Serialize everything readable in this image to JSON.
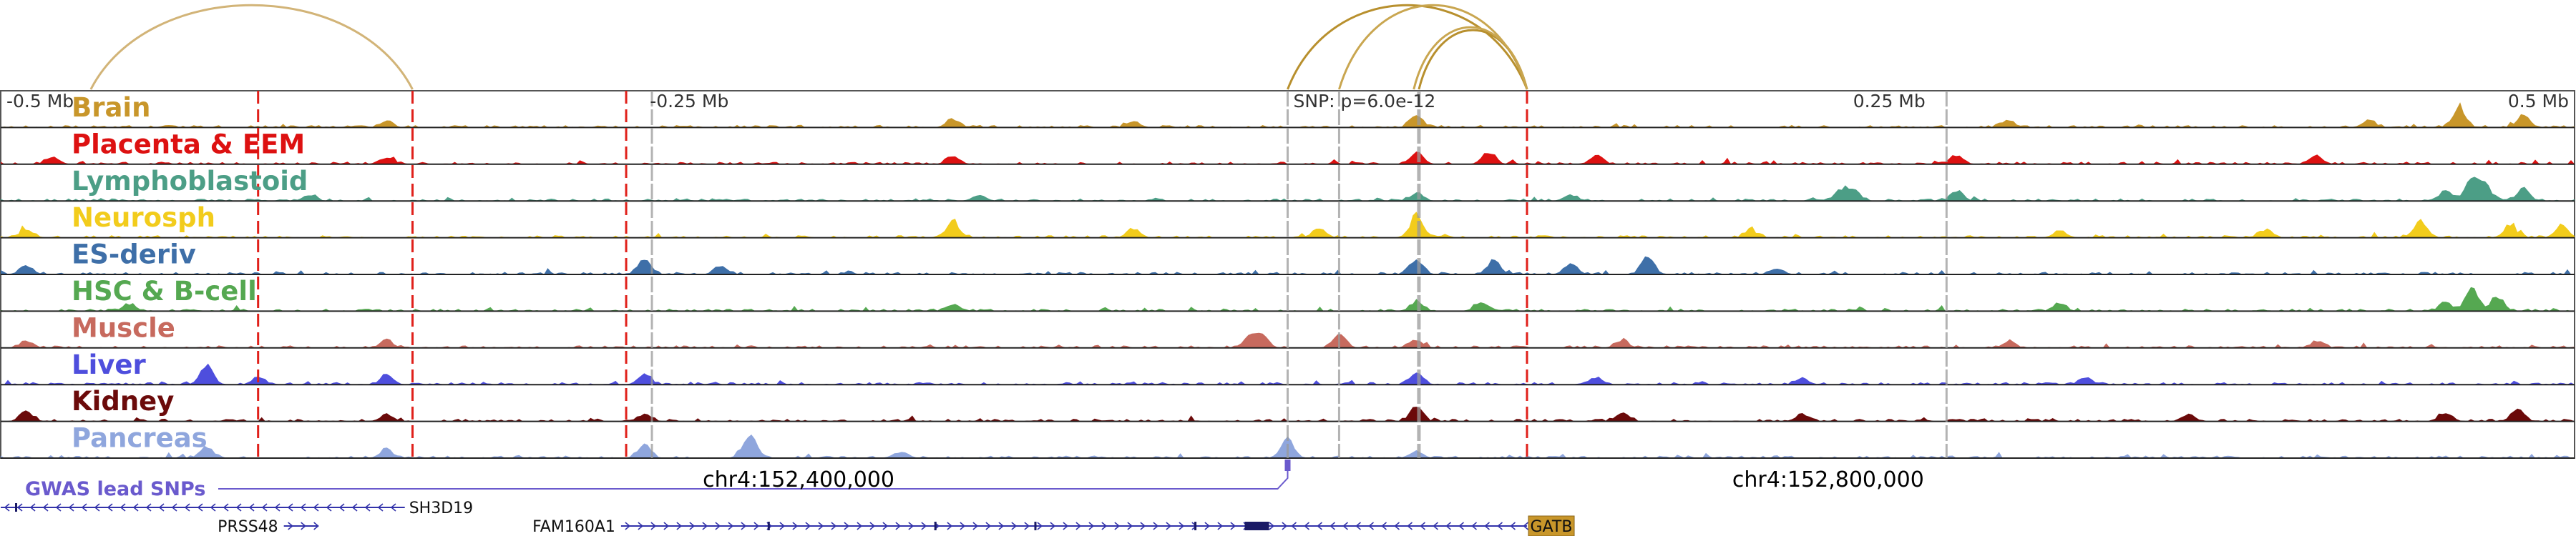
{
  "chart_data": {
    "type": "area",
    "x_axis": {
      "ticks": [
        {
          "pos": -0.5,
          "label": "-0.5 Mb"
        },
        {
          "pos": -0.25,
          "label": "-0.25 Mb"
        },
        {
          "pos": 0.0,
          "label": "SNP: p=6.0e-12"
        },
        {
          "pos": 0.25,
          "label": "0.25 Mb"
        },
        {
          "pos": 0.5,
          "label": "0.5 Mb"
        }
      ],
      "range": [
        -0.5,
        0.5
      ],
      "coordinates": [
        {
          "pos": -0.19,
          "label": "chr4:152,400,000"
        },
        {
          "pos": 0.21,
          "label": "chr4:152,800,000"
        }
      ]
    },
    "tracks": [
      {
        "name": "Brain",
        "color": "#C8962A",
        "peaks": [
          [
            -0.35,
            0.25
          ],
          [
            -0.13,
            0.35
          ],
          [
            0.05,
            0.5
          ],
          [
            -0.06,
            0.25
          ],
          [
            0.28,
            0.3
          ],
          [
            0.42,
            0.3
          ],
          [
            0.455,
            0.8
          ],
          [
            0.48,
            0.5
          ]
        ]
      },
      {
        "name": "Placenta & EEM",
        "color": "#DD1111",
        "peaks": [
          [
            -0.48,
            0.3
          ],
          [
            -0.35,
            0.3
          ],
          [
            -0.13,
            0.3
          ],
          [
            0.05,
            0.5
          ],
          [
            0.078,
            0.5
          ],
          [
            0.12,
            0.3
          ],
          [
            0.26,
            0.35
          ],
          [
            0.4,
            0.3
          ]
        ]
      },
      {
        "name": "Lymphoblastoid",
        "color": "#4C9E86",
        "peaks": [
          [
            -0.38,
            0.25
          ],
          [
            -0.12,
            0.25
          ],
          [
            0.05,
            0.3
          ],
          [
            0.11,
            0.25
          ],
          [
            0.215,
            0.45
          ],
          [
            0.22,
            0.4
          ],
          [
            0.26,
            0.4
          ],
          [
            0.45,
            0.4
          ],
          [
            0.46,
            0.9
          ],
          [
            0.465,
            0.7
          ],
          [
            0.48,
            0.5
          ]
        ]
      },
      {
        "name": "Neurosph",
        "color": "#F2CC1C",
        "peaks": [
          [
            -0.49,
            0.35
          ],
          [
            -0.13,
            0.7
          ],
          [
            -0.06,
            0.35
          ],
          [
            0.05,
            0.9
          ],
          [
            0.012,
            0.4
          ],
          [
            0.18,
            0.3
          ],
          [
            0.3,
            0.3
          ],
          [
            0.38,
            0.35
          ],
          [
            0.44,
            0.7
          ],
          [
            0.475,
            0.5
          ],
          [
            0.495,
            0.5
          ]
        ]
      },
      {
        "name": "ES-deriv",
        "color": "#3E6FA8",
        "peaks": [
          [
            -0.49,
            0.35
          ],
          [
            -0.25,
            0.65
          ],
          [
            -0.22,
            0.3
          ],
          [
            0.05,
            0.65
          ],
          [
            0.08,
            0.6
          ],
          [
            0.11,
            0.45
          ],
          [
            0.14,
            0.7
          ],
          [
            0.19,
            0.25
          ]
        ]
      },
      {
        "name": "HSC & B-cell",
        "color": "#55A851",
        "peaks": [
          [
            -0.45,
            0.3
          ],
          [
            -0.13,
            0.3
          ],
          [
            0.05,
            0.4
          ],
          [
            0.075,
            0.35
          ],
          [
            0.3,
            0.3
          ],
          [
            0.45,
            0.35
          ],
          [
            0.46,
            0.95
          ],
          [
            0.47,
            0.6
          ]
        ]
      },
      {
        "name": "Muscle",
        "color": "#C76A5E",
        "peaks": [
          [
            -0.49,
            0.3
          ],
          [
            -0.35,
            0.3
          ],
          [
            -0.015,
            0.45
          ],
          [
            -0.01,
            0.5
          ],
          [
            0.02,
            0.55
          ],
          [
            0.05,
            0.35
          ],
          [
            0.13,
            0.3
          ],
          [
            0.28,
            0.25
          ],
          [
            0.4,
            0.3
          ]
        ]
      },
      {
        "name": "Liver",
        "color": "#4E4EDD",
        "peaks": [
          [
            -0.42,
            0.8
          ],
          [
            -0.4,
            0.3
          ],
          [
            -0.35,
            0.4
          ],
          [
            -0.25,
            0.45
          ],
          [
            0.05,
            0.5
          ],
          [
            0.12,
            0.3
          ],
          [
            0.2,
            0.25
          ],
          [
            0.31,
            0.3
          ]
        ]
      },
      {
        "name": "Kidney",
        "color": "#6B0A0A",
        "peaks": [
          [
            -0.49,
            0.4
          ],
          [
            -0.35,
            0.3
          ],
          [
            -0.25,
            0.3
          ],
          [
            0.05,
            0.55
          ],
          [
            0.13,
            0.35
          ],
          [
            0.2,
            0.3
          ],
          [
            0.35,
            0.3
          ],
          [
            0.45,
            0.3
          ],
          [
            0.478,
            0.45
          ]
        ]
      },
      {
        "name": "Pancreas",
        "color": "#8FA6DD",
        "peaks": [
          [
            -0.42,
            0.45
          ],
          [
            -0.35,
            0.35
          ],
          [
            -0.25,
            0.55
          ],
          [
            -0.21,
            0.5
          ],
          [
            -0.208,
            0.55
          ],
          [
            -0.15,
            0.25
          ],
          [
            0.0,
            0.8
          ],
          [
            0.05,
            0.3
          ]
        ]
      }
    ],
    "red_dashed_lines": [
      -0.4,
      -0.34,
      -0.257,
      0.093
    ],
    "grey_lines": [
      -0.247,
      0.0,
      0.02,
      0.051,
      0.256
    ],
    "arcs": [
      {
        "from": -0.465,
        "to": -0.34,
        "color": "#D2B478"
      },
      {
        "from": 0.0,
        "to": 0.093,
        "color": "#B8902E"
      },
      {
        "from": 0.02,
        "to": 0.093,
        "color": "#C9A650"
      },
      {
        "from": 0.051,
        "to": 0.093,
        "color": "#B8902E"
      },
      {
        "from": 0.049,
        "to": 0.093,
        "color": "#C9A650"
      }
    ],
    "gwas": {
      "label": "GWAS lead SNPs",
      "color": "#6A5ACD",
      "snp_pos": 0.0
    },
    "genes": [
      {
        "name": "SH3D19",
        "start": -0.5,
        "end": -0.343,
        "strand": "-",
        "label_side": "right"
      },
      {
        "name": "PRSS48",
        "start": -0.39,
        "end": -0.377,
        "strand": "+",
        "label_side": "left"
      },
      {
        "name": "FAM160A1",
        "start": -0.259,
        "end": 0.0,
        "strand": "+",
        "label_side": "left"
      },
      {
        "name": "GATB",
        "start": 0.0,
        "end": 0.093,
        "strand": "-",
        "label_side": "right",
        "highlight": true
      }
    ]
  }
}
